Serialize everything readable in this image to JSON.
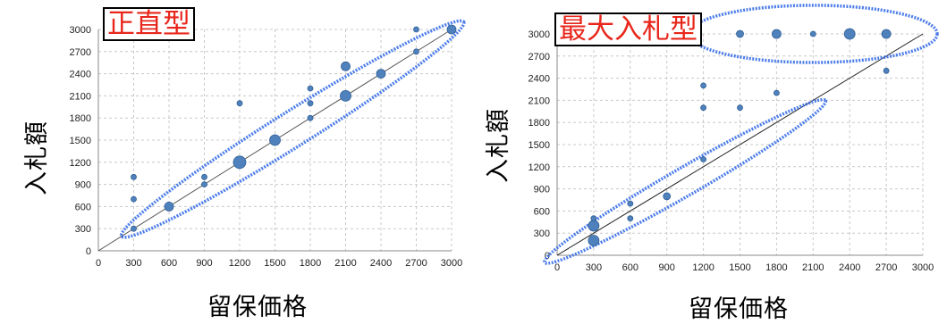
{
  "chart_data": [
    {
      "type": "scatter",
      "title": "正直型",
      "xlabel": "留保価格",
      "ylabel": "入札額",
      "xlim": [
        0,
        3000
      ],
      "ylim": [
        0,
        3000
      ],
      "xticks": [
        0,
        300,
        600,
        900,
        1200,
        1500,
        1800,
        2100,
        2400,
        2700,
        3000
      ],
      "yticks": [
        0,
        300,
        600,
        900,
        1200,
        1500,
        1800,
        2100,
        2400,
        2700,
        3000
      ],
      "grid": true,
      "diagonal": true,
      "points": [
        {
          "x": 300,
          "y": 300,
          "r": 3
        },
        {
          "x": 300,
          "y": 700,
          "r": 3
        },
        {
          "x": 300,
          "y": 1000,
          "r": 3
        },
        {
          "x": 600,
          "y": 600,
          "r": 5
        },
        {
          "x": 900,
          "y": 900,
          "r": 3
        },
        {
          "x": 900,
          "y": 1000,
          "r": 3
        },
        {
          "x": 1200,
          "y": 1200,
          "r": 7
        },
        {
          "x": 1200,
          "y": 2000,
          "r": 3
        },
        {
          "x": 1500,
          "y": 1500,
          "r": 6
        },
        {
          "x": 1800,
          "y": 1800,
          "r": 3
        },
        {
          "x": 1800,
          "y": 2000,
          "r": 3
        },
        {
          "x": 1800,
          "y": 2200,
          "r": 3
        },
        {
          "x": 2100,
          "y": 2100,
          "r": 6
        },
        {
          "x": 2100,
          "y": 2500,
          "r": 5
        },
        {
          "x": 2400,
          "y": 2400,
          "r": 5
        },
        {
          "x": 2700,
          "y": 2700,
          "r": 3
        },
        {
          "x": 2700,
          "y": 3000,
          "r": 3
        },
        {
          "x": 3000,
          "y": 3000,
          "r": 5
        }
      ],
      "ellipses": [
        {
          "x1": 300,
          "y1": 300,
          "x2": 3000,
          "y2": 3000,
          "width": 300
        }
      ],
      "accent_color": "#e8261b",
      "point_color": "#4f81bd",
      "ellipse_color": "#3a6fe8"
    },
    {
      "type": "scatter",
      "title": "最大入札型",
      "xlabel": "留保価格",
      "ylabel": "入札額",
      "xlim": [
        0,
        3000
      ],
      "ylim": [
        0,
        3000
      ],
      "xticks": [
        0,
        300,
        600,
        900,
        1200,
        1500,
        1800,
        2100,
        2400,
        2700,
        3000
      ],
      "yticks": [
        0,
        300,
        600,
        900,
        1200,
        1500,
        1800,
        2100,
        2400,
        2700,
        3000
      ],
      "grid": true,
      "diagonal": true,
      "points": [
        {
          "x": 300,
          "y": 200,
          "r": 6
        },
        {
          "x": 300,
          "y": 400,
          "r": 6
        },
        {
          "x": 300,
          "y": 500,
          "r": 3
        },
        {
          "x": 600,
          "y": 500,
          "r": 3
        },
        {
          "x": 600,
          "y": 700,
          "r": 3
        },
        {
          "x": 900,
          "y": 800,
          "r": 4
        },
        {
          "x": 1200,
          "y": 1300,
          "r": 3
        },
        {
          "x": 1200,
          "y": 2000,
          "r": 3
        },
        {
          "x": 1200,
          "y": 2300,
          "r": 3
        },
        {
          "x": 1500,
          "y": 2000,
          "r": 3
        },
        {
          "x": 1500,
          "y": 3000,
          "r": 4
        },
        {
          "x": 1800,
          "y": 2200,
          "r": 3
        },
        {
          "x": 1800,
          "y": 3000,
          "r": 5
        },
        {
          "x": 2100,
          "y": 3000,
          "r": 3
        },
        {
          "x": 2400,
          "y": 3000,
          "r": 6
        },
        {
          "x": 2700,
          "y": 2500,
          "r": 3
        },
        {
          "x": 2700,
          "y": 3000,
          "r": 5
        }
      ],
      "ellipses": [
        {
          "x1": 0,
          "y1": 0,
          "x2": 2100,
          "y2": 2000,
          "width": 230
        },
        {
          "x1": 1200,
          "y1": 3000,
          "x2": 3000,
          "y2": 3000,
          "width": 470
        }
      ],
      "accent_color": "#e8261b",
      "point_color": "#4f81bd",
      "ellipse_color": "#3a6fe8"
    }
  ]
}
